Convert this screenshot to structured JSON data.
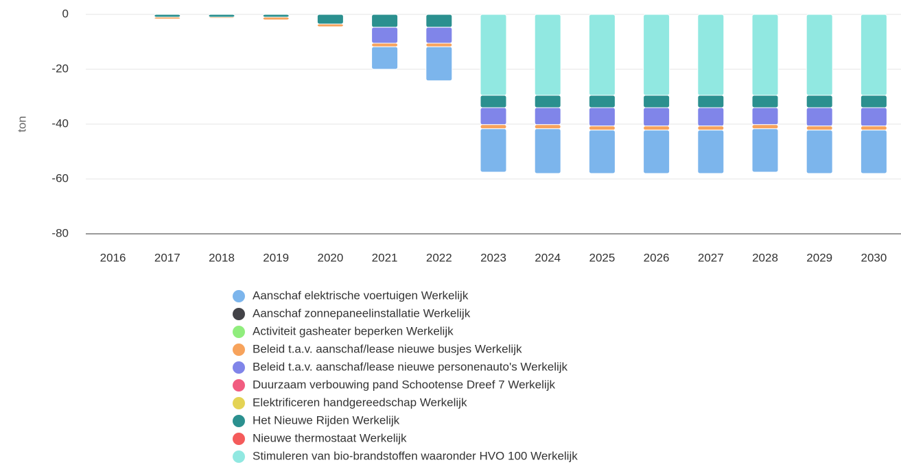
{
  "chart_data": {
    "type": "bar",
    "stacked": true,
    "y_label": "ton",
    "categories": [
      "2016",
      "2017",
      "2018",
      "2019",
      "2020",
      "2021",
      "2022",
      "2023",
      "2024",
      "2025",
      "2026",
      "2027",
      "2028",
      "2029",
      "2030"
    ],
    "ylim": [
      -80,
      0
    ],
    "yticks": [
      0,
      -20,
      -40,
      -60,
      -80
    ],
    "grid": true,
    "series": [
      {
        "name": "Aanschaf elektrische voertuigen Werkelijk",
        "color": "#7cb5ec",
        "values": [
          0,
          0,
          0,
          0,
          0,
          -8.2,
          -12.4,
          -15.8,
          -16.3,
          -15.8,
          -15.8,
          -15.8,
          -15.8,
          -15.8,
          -15.8
        ]
      },
      {
        "name": "Aanschaf zonnepaneelinstallatie Werkelijk",
        "color": "#434348",
        "values": [
          0,
          0,
          0,
          0,
          0,
          0,
          0,
          0,
          0,
          0,
          0,
          0,
          0,
          0,
          0
        ]
      },
      {
        "name": "Activiteit gasheater beperken Werkelijk",
        "color": "#90ed7d",
        "values": [
          0,
          0,
          0,
          0,
          0,
          0,
          0,
          0,
          0,
          0,
          0,
          0,
          0,
          0,
          0
        ]
      },
      {
        "name": "Beleid t.a.v. aanschaf/lease nieuwe busjes Werkelijk",
        "color": "#f7a35c",
        "values": [
          0,
          -0.7,
          -0.4,
          -1,
          -1,
          -1.3,
          -1.3,
          -1.5,
          -1.5,
          -1.5,
          -1.5,
          -1.5,
          -1.5,
          -1.5,
          -1.5
        ]
      },
      {
        "name": "Beleid t.a.v. aanschaf/lease nieuwe personenauto's Werkelijk",
        "color": "#8085e9",
        "values": [
          0,
          0,
          0,
          0,
          0,
          -5.8,
          -5.8,
          -6.2,
          -6.2,
          -6.7,
          -6.7,
          -6.7,
          -6.2,
          -6.7,
          -6.7
        ]
      },
      {
        "name": "Duurzaam verbouwing pand Schootense Dreef 7 Werkelijk",
        "color": "#f15c80",
        "values": [
          0,
          0,
          0,
          0,
          0,
          0,
          0,
          0,
          0,
          0,
          0,
          0,
          0,
          0,
          0
        ]
      },
      {
        "name": "Elektrificeren handgereedschap Werkelijk",
        "color": "#e4d354",
        "values": [
          0,
          0,
          0,
          0,
          0,
          0,
          0,
          0,
          0,
          0,
          0,
          0,
          0,
          0,
          0
        ]
      },
      {
        "name": "Het Nieuwe Rijden Werkelijk",
        "color": "#2b908f",
        "values": [
          0,
          -1,
          -1,
          -1,
          -3.5,
          -4.7,
          -4.7,
          -4.5,
          -4.5,
          -4.5,
          -4.5,
          -4.5,
          -4.5,
          -4.5,
          -4.5
        ]
      },
      {
        "name": "Nieuwe thermostaat Werkelijk",
        "color": "#f45b5b",
        "values": [
          0,
          0,
          0,
          0,
          0,
          0,
          0,
          0,
          0,
          0,
          0,
          0,
          0,
          0,
          0
        ]
      },
      {
        "name": "Stimuleren van bio-brandstoffen waaronder HVO 100 Werkelijk",
        "color": "#91e8e1",
        "values": [
          0,
          0,
          0,
          0,
          0,
          0,
          0,
          -29.5,
          -29.5,
          -29.5,
          -29.5,
          -29.5,
          -29.5,
          -29.5,
          -29.5
        ]
      }
    ]
  }
}
